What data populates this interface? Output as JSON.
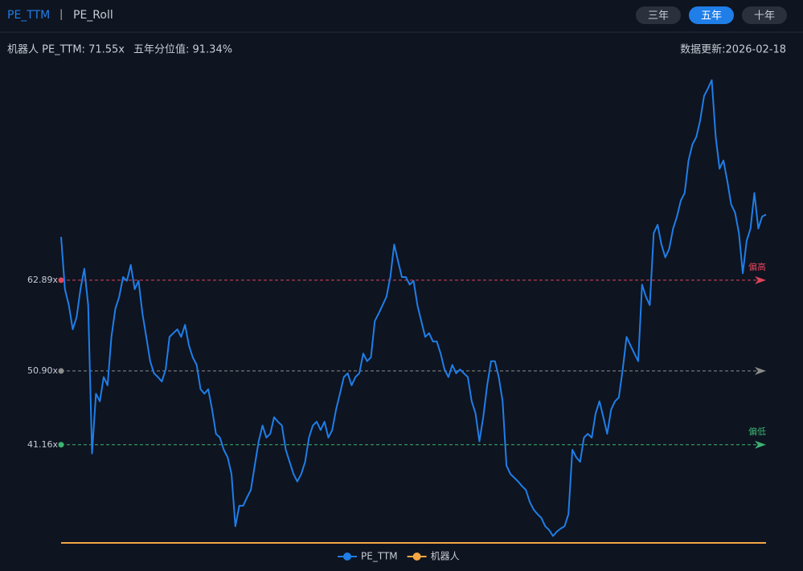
{
  "header": {
    "tabs": [
      "PE_TTM",
      "PE_Roll"
    ],
    "separator": "|",
    "ranges": [
      "三年",
      "五年",
      "十年"
    ],
    "active_range": 1,
    "info": "机器人 PE_TTM: 71.55x",
    "percentile": "五年分位值: 91.34%",
    "updated": "数据更新:2026-02-18"
  },
  "chart_data": {
    "type": "line",
    "ylim": [
      28.2,
      91.4
    ],
    "series": [
      {
        "name": "PE_TTM",
        "color": "#1f7ee8",
        "values": [
          68.6,
          61.7,
          59.6,
          56.4,
          58.0,
          61.7,
          64.4,
          59.6,
          40.0,
          47.9,
          46.9,
          50.1,
          49.0,
          55.4,
          59.1,
          60.7,
          63.3,
          62.8,
          64.9,
          61.7,
          62.8,
          58.5,
          55.4,
          52.2,
          50.6,
          50.1,
          49.5,
          51.1,
          55.4,
          55.9,
          56.4,
          55.4,
          57.0,
          54.3,
          52.7,
          51.7,
          48.5,
          47.9,
          48.5,
          45.8,
          42.6,
          42.1,
          40.5,
          39.5,
          37.3,
          30.4,
          33.1,
          33.1,
          34.2,
          35.2,
          38.4,
          41.6,
          43.7,
          42.1,
          42.6,
          44.8,
          44.2,
          43.7,
          40.5,
          38.9,
          37.3,
          36.3,
          37.3,
          38.9,
          42.1,
          43.7,
          44.2,
          43.1,
          44.2,
          42.1,
          43.1,
          45.8,
          47.9,
          50.1,
          50.6,
          49.0,
          50.1,
          50.6,
          53.2,
          52.2,
          52.7,
          57.5,
          58.5,
          59.6,
          60.7,
          63.3,
          67.6,
          65.4,
          63.3,
          63.3,
          62.3,
          62.8,
          59.6,
          57.5,
          55.4,
          55.9,
          54.8,
          54.8,
          53.2,
          51.1,
          50.1,
          51.7,
          50.6,
          51.1,
          50.6,
          50.1,
          46.9,
          45.3,
          41.6,
          44.8,
          49.0,
          52.2,
          52.2,
          50.1,
          46.9,
          38.4,
          37.3,
          36.8,
          36.3,
          35.7,
          35.2,
          33.6,
          32.6,
          32.0,
          31.5,
          30.4,
          29.9,
          29.1,
          29.7,
          30.1,
          30.4,
          32.0,
          40.5,
          39.5,
          38.9,
          42.1,
          42.6,
          42.1,
          45.3,
          46.9,
          44.8,
          42.6,
          45.8,
          46.9,
          47.4,
          51.1,
          55.4,
          54.3,
          53.2,
          52.2,
          62.3,
          60.7,
          59.6,
          69.1,
          70.2,
          67.6,
          65.9,
          67.0,
          69.7,
          71.3,
          73.4,
          74.4,
          78.7,
          80.8,
          81.8,
          84.0,
          87.2,
          88.2,
          89.3,
          81.8,
          77.6,
          78.7,
          76.0,
          72.9,
          71.8,
          69.1,
          63.8,
          68.1,
          69.7,
          74.4,
          69.7,
          71.3,
          71.55
        ]
      },
      {
        "name": "机器人",
        "color": "#f5a742"
      }
    ],
    "mark_lines": [
      {
        "value": 62.89,
        "label": "62.89x",
        "color": "#e0435a",
        "tag": "偏高"
      },
      {
        "value": 50.9,
        "label": "50.90x",
        "color": "#8c8c8c"
      },
      {
        "value": 41.16,
        "label": "41.16x",
        "color": "#3cb371",
        "tag": "偏低"
      }
    ]
  }
}
